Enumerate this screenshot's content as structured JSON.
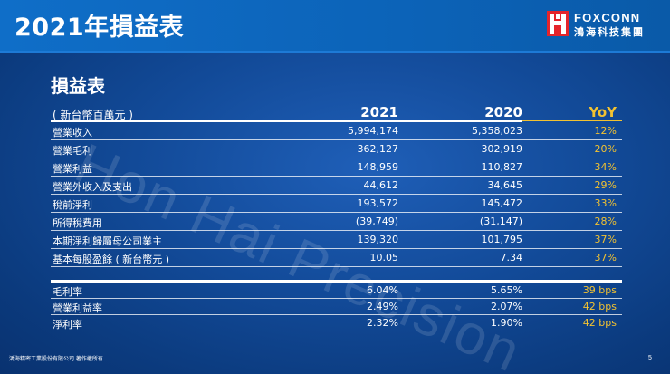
{
  "slide": {
    "title": "2021年損益表",
    "watermark": "Hon Hai Precision",
    "section_title": "損益表",
    "footer": "鴻海精密工業股份有限公司  著作權所有",
    "page_number": "5"
  },
  "logo": {
    "brand_en": "FOXCONN",
    "brand_cn": "鴻海科技集團",
    "registered_mark": "®"
  },
  "table": {
    "unit_label": "( 新台幣百萬元 )",
    "columns": [
      "2021",
      "2020",
      "YoY"
    ],
    "rows": [
      {
        "label": "營業收入",
        "v2021": "5,994,174",
        "v2020": "5,358,023",
        "yoy": "12%"
      },
      {
        "label": "營業毛利",
        "v2021": "362,127",
        "v2020": "302,919",
        "yoy": "20%"
      },
      {
        "label": "營業利益",
        "v2021": "148,959",
        "v2020": "110,827",
        "yoy": "34%"
      },
      {
        "label": "營業外收入及支出",
        "v2021": "44,612",
        "v2020": "34,645",
        "yoy": "29%"
      },
      {
        "label": "稅前淨利",
        "v2021": "193,572",
        "v2020": "145,472",
        "yoy": "33%"
      },
      {
        "label": "所得稅費用",
        "v2021": "(39,749)",
        "v2020": "(31,147)",
        "yoy": "28%"
      },
      {
        "label": "本期淨利歸屬母公司業主",
        "v2021": "139,320",
        "v2020": "101,795",
        "yoy": "37%"
      },
      {
        "label": "基本每股盈餘 ( 新台幣元 )",
        "v2021": "10.05",
        "v2020": "7.34",
        "yoy": "37%"
      }
    ],
    "ratio_rows": [
      {
        "label": "毛利率",
        "v2021": "6.04%",
        "v2020": "5.65%",
        "yoy": "39 bps"
      },
      {
        "label": "營業利益率",
        "v2021": "2.49%",
        "v2020": "2.07%",
        "yoy": "42 bps"
      },
      {
        "label": "淨利率",
        "v2021": "2.32%",
        "v2020": "1.90%",
        "yoy": "42 bps"
      }
    ]
  },
  "colors": {
    "background": "#124a98",
    "title_bar": "#0f6ec8",
    "accent_yoy": "#f2c231",
    "logo_red": "#e5242b"
  }
}
